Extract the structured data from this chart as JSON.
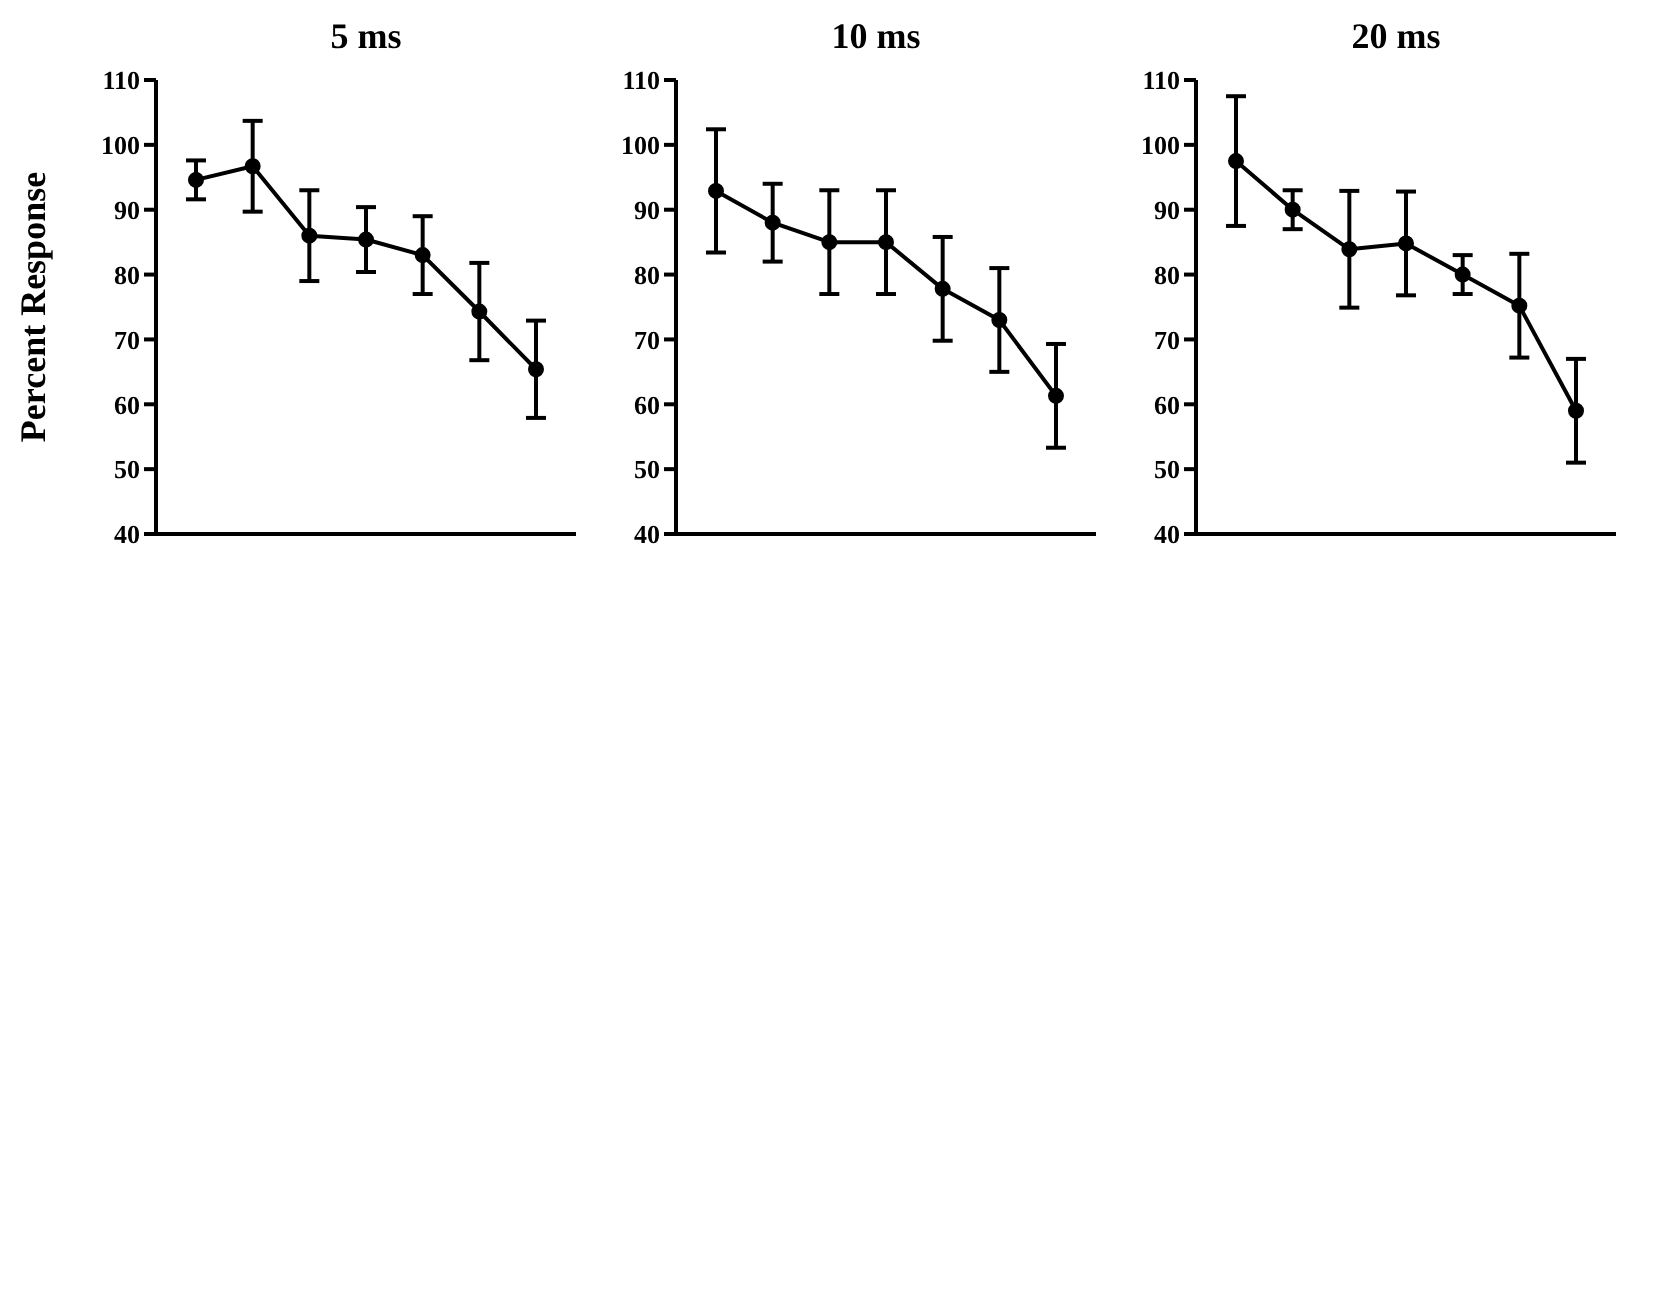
{
  "chart_data": [
    {
      "type": "line",
      "title": "5 ms",
      "ylabel": "Percent Response",
      "categories": [
        null,
        null,
        null,
        null,
        null,
        null,
        null
      ],
      "ylim": [
        40,
        110
      ],
      "yticks": [
        40,
        50,
        60,
        70,
        80,
        90,
        100,
        110
      ],
      "tick_labels": "y",
      "marker": "circle",
      "legend": false,
      "grid": false,
      "series": [
        {
          "color": "#000000",
          "values": [
            94.6,
            96.7,
            86,
            85.4,
            83,
            74.3,
            65.4
          ],
          "errors": [
            3,
            7,
            7,
            5,
            6,
            7.5,
            7.5
          ]
        }
      ]
    },
    {
      "type": "line",
      "title": "10 ms",
      "categories": [
        null,
        null,
        null,
        null,
        null,
        null,
        null
      ],
      "ylim": [
        40,
        110
      ],
      "yticks": [
        40,
        50,
        60,
        70,
        80,
        90,
        100,
        110
      ],
      "tick_labels": "y",
      "marker": "circle",
      "legend": false,
      "grid": false,
      "series": [
        {
          "color": "#000000",
          "values": [
            92.9,
            88,
            85,
            85,
            77.8,
            73,
            61.3
          ],
          "errors": [
            9.5,
            6,
            8,
            8,
            8,
            8,
            8
          ]
        }
      ]
    },
    {
      "type": "line",
      "title": "20 ms",
      "categories": [
        null,
        null,
        null,
        null,
        null,
        null,
        null
      ],
      "ylim": [
        40,
        110
      ],
      "yticks": [
        40,
        50,
        60,
        70,
        80,
        90,
        100,
        110
      ],
      "tick_labels": "y",
      "marker": "circle",
      "legend": false,
      "grid": false,
      "series": [
        {
          "color": "#000000",
          "values": [
            97.5,
            90,
            83.9,
            84.8,
            80,
            75.2,
            59
          ],
          "errors": [
            10,
            3,
            9,
            8,
            3,
            8,
            8
          ]
        }
      ]
    }
  ]
}
